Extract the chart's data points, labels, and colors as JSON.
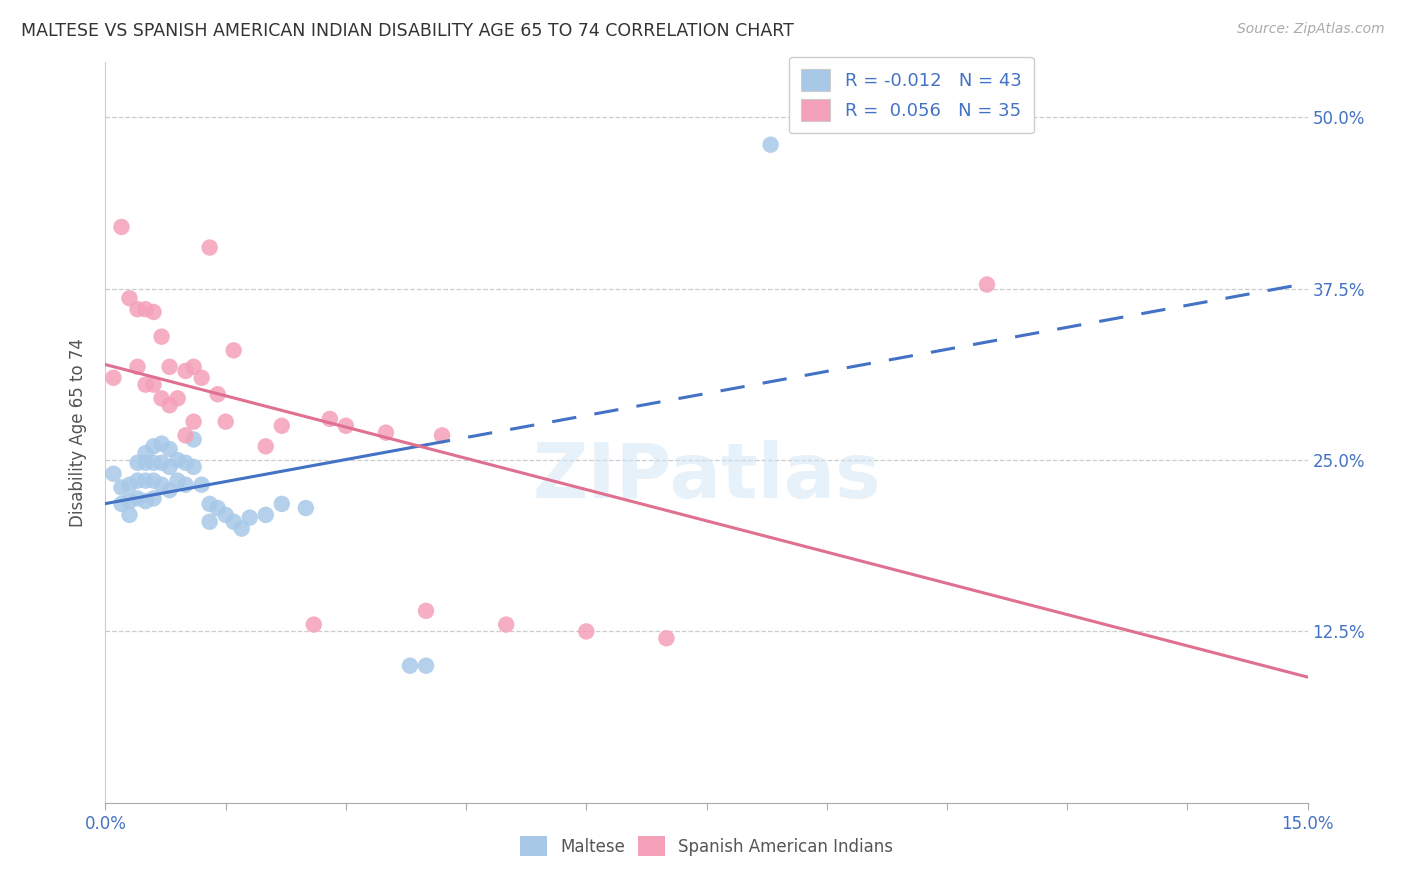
{
  "title": "MALTESE VS SPANISH AMERICAN INDIAN DISABILITY AGE 65 TO 74 CORRELATION CHART",
  "source": "Source: ZipAtlas.com",
  "ylabel": "Disability Age 65 to 74",
  "ytick_labels": [
    "12.5%",
    "25.0%",
    "37.5%",
    "50.0%"
  ],
  "ytick_vals": [
    0.125,
    0.25,
    0.375,
    0.5
  ],
  "xlim": [
    0.0,
    0.15
  ],
  "ylim": [
    0.0,
    0.54
  ],
  "maltese_color": "#a8c8e8",
  "spanish_color": "#f4a0b8",
  "maltese_line_color": "#4472c4",
  "spanish_line_color": "#e07090",
  "maltese_R": -0.012,
  "maltese_N": 43,
  "spanish_R": 0.056,
  "spanish_N": 35,
  "maltese_x": [
    0.001,
    0.002,
    0.002,
    0.003,
    0.003,
    0.003,
    0.004,
    0.004,
    0.004,
    0.005,
    0.005,
    0.005,
    0.005,
    0.006,
    0.006,
    0.006,
    0.006,
    0.007,
    0.007,
    0.007,
    0.008,
    0.008,
    0.008,
    0.009,
    0.009,
    0.01,
    0.01,
    0.011,
    0.011,
    0.012,
    0.013,
    0.013,
    0.014,
    0.015,
    0.016,
    0.017,
    0.018,
    0.02,
    0.022,
    0.025,
    0.038,
    0.04,
    0.083
  ],
  "maltese_y": [
    0.24,
    0.23,
    0.218,
    0.232,
    0.22,
    0.21,
    0.248,
    0.235,
    0.222,
    0.255,
    0.248,
    0.235,
    0.22,
    0.26,
    0.248,
    0.235,
    0.222,
    0.262,
    0.248,
    0.232,
    0.258,
    0.245,
    0.228,
    0.25,
    0.235,
    0.248,
    0.232,
    0.265,
    0.245,
    0.232,
    0.218,
    0.205,
    0.215,
    0.21,
    0.205,
    0.2,
    0.208,
    0.21,
    0.218,
    0.215,
    0.1,
    0.1,
    0.48
  ],
  "spanish_x": [
    0.001,
    0.002,
    0.003,
    0.004,
    0.004,
    0.005,
    0.005,
    0.006,
    0.006,
    0.007,
    0.007,
    0.008,
    0.008,
    0.009,
    0.01,
    0.01,
    0.011,
    0.011,
    0.012,
    0.013,
    0.014,
    0.015,
    0.016,
    0.02,
    0.022,
    0.026,
    0.028,
    0.03,
    0.035,
    0.04,
    0.042,
    0.05,
    0.06,
    0.07,
    0.11
  ],
  "spanish_y": [
    0.31,
    0.42,
    0.368,
    0.36,
    0.318,
    0.36,
    0.305,
    0.358,
    0.305,
    0.34,
    0.295,
    0.318,
    0.29,
    0.295,
    0.315,
    0.268,
    0.318,
    0.278,
    0.31,
    0.405,
    0.298,
    0.278,
    0.33,
    0.26,
    0.275,
    0.13,
    0.28,
    0.275,
    0.27,
    0.14,
    0.268,
    0.13,
    0.125,
    0.12,
    0.378
  ]
}
